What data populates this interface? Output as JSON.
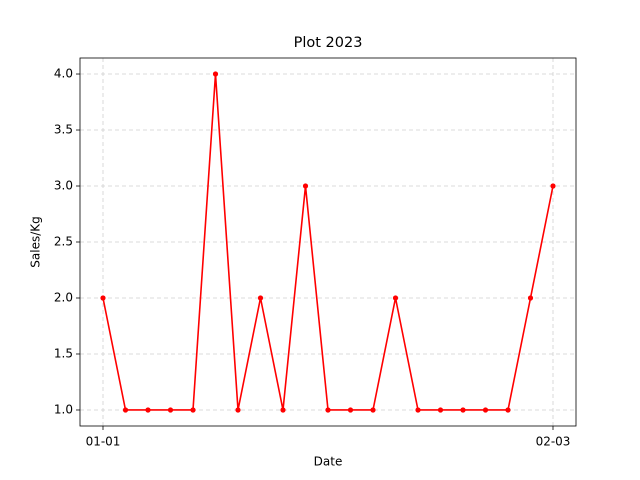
{
  "chart_data": {
    "type": "line",
    "title": "Plot 2023",
    "x_label": "Date",
    "y_label": "Sales/Kg",
    "categories": [
      "01-01",
      null,
      null,
      null,
      null,
      null,
      null,
      null,
      null,
      null,
      null,
      null,
      null,
      null,
      null,
      null,
      null,
      null,
      null,
      null,
      "02-03"
    ],
    "series": [
      {
        "name": "Sales",
        "color": "#ff0000",
        "values": [
          2,
          1,
          1,
          1,
          1,
          4,
          1,
          2,
          1,
          3,
          1,
          1,
          1,
          2,
          1,
          1,
          1,
          1,
          1,
          2,
          3
        ]
      }
    ],
    "ylim": [
      0.857,
      4.143
    ],
    "yticks": [
      {
        "value": 1,
        "label": "1.0"
      },
      {
        "value": 1.5,
        "label": "1.5"
      },
      {
        "value": 2,
        "label": "2.0"
      },
      {
        "value": 2.5,
        "label": "2.5"
      },
      {
        "value": 3,
        "label": "3.0"
      },
      {
        "value": 3.5,
        "label": "3.5"
      },
      {
        "value": 4,
        "label": "4.0"
      }
    ],
    "grid": true
  }
}
